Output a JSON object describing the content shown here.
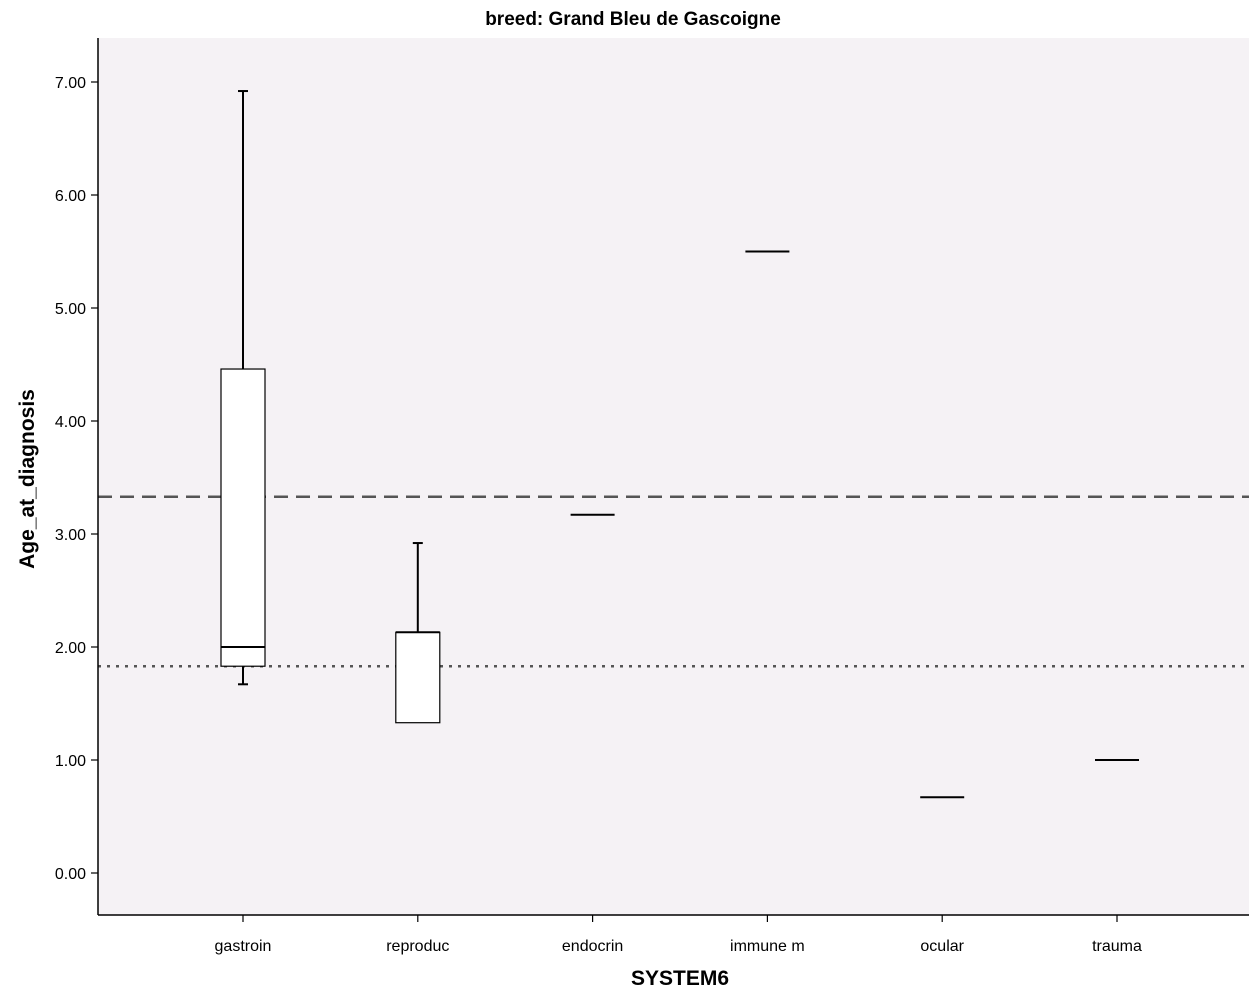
{
  "chart_data": {
    "type": "boxplot",
    "title": "breed: Grand Bleu de Gascoigne",
    "xlabel": "SYSTEM6",
    "ylabel": "Age_at_diagnosis",
    "categories": [
      "gastroin",
      "reproduc",
      "endocrin",
      "immune m",
      "ocular",
      "trauma"
    ],
    "ylim": [
      -0.38,
      7.38
    ],
    "yticks": [
      0,
      1,
      2,
      3,
      4,
      5,
      6,
      7
    ],
    "ytick_labels": [
      "0.00",
      "1.00",
      "2.00",
      "3.00",
      "4.00",
      "5.00",
      "6.00",
      "7.00"
    ],
    "boxes": [
      {
        "category": "gastroin",
        "min": 1.67,
        "q1": 1.83,
        "median": 2.0,
        "q3": 4.46,
        "max": 6.92
      },
      {
        "category": "reproduc",
        "min": 1.33,
        "q1": 1.33,
        "median": 2.13,
        "q3": 2.13,
        "max": 2.92
      },
      {
        "category": "endocrin",
        "min": 3.17,
        "q1": 3.17,
        "median": 3.17,
        "q3": 3.17,
        "max": 3.17
      },
      {
        "category": "immune m",
        "min": 5.5,
        "q1": 5.5,
        "median": 5.5,
        "q3": 5.5,
        "max": 5.5
      },
      {
        "category": "ocular",
        "min": 0.67,
        "q1": 0.67,
        "median": 0.67,
        "q3": 0.67,
        "max": 0.67
      },
      {
        "category": "trauma",
        "min": 1.0,
        "q1": 1.0,
        "median": 1.0,
        "q3": 1.0,
        "max": 1.0
      }
    ],
    "reference_lines": [
      {
        "style": "dashed",
        "value": 3.33
      },
      {
        "style": "dotted",
        "value": 1.83
      }
    ],
    "grid": false,
    "colors": {
      "plot_background": "#f5f2f5",
      "box_fill": "#ffffff",
      "line": "#000000",
      "reference_line": "#555555"
    }
  }
}
